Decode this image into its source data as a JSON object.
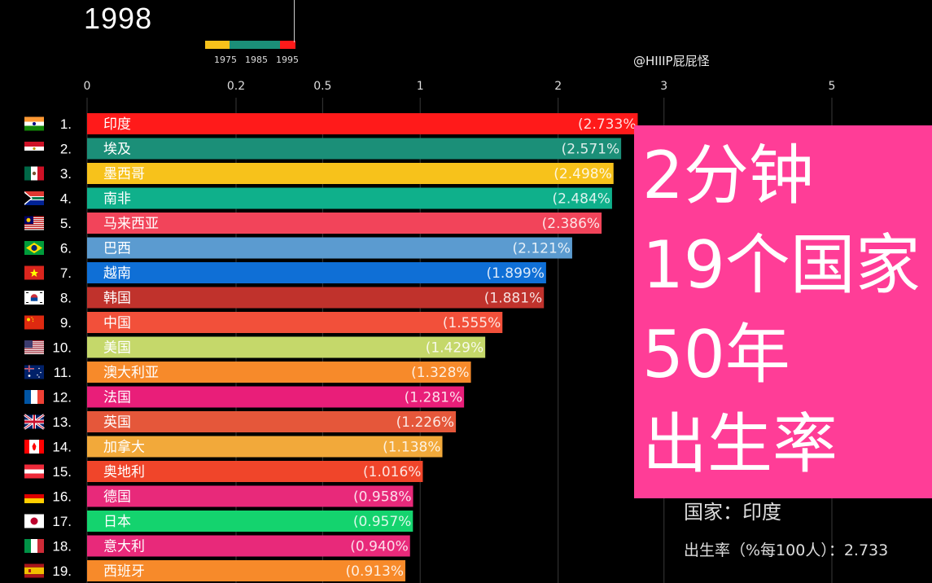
{
  "header": {
    "year": "1998",
    "credit": "@HIIIP屁屁怪",
    "timeline_labels": [
      "1975",
      "1985",
      "1995"
    ]
  },
  "overlay": {
    "lines": [
      "2分钟",
      "19个国家",
      "50年",
      "出生率"
    ]
  },
  "info": {
    "country_line": "国家：印度",
    "rate_line": "出生率（%每100人）：2.733"
  },
  "colors": {
    "timeline": [
      "#f7c21b",
      "#1b8f78",
      "#ff1a1a"
    ],
    "overlay": "#ff3d97"
  },
  "chart_data": {
    "type": "bar",
    "orientation": "horizontal",
    "scale": "sqrt",
    "xlim": [
      0,
      5
    ],
    "x_ticks": [
      0,
      0.2,
      0.5,
      1,
      2,
      3,
      5
    ],
    "x_tick_labels": [
      "0",
      "0.2",
      "0.5",
      "1",
      "2",
      "3",
      "5"
    ],
    "bars": [
      {
        "rank": "1.",
        "label": "印度",
        "value": 2.733,
        "value_label": "(2.733%",
        "color": "#ff1a1a",
        "flag": "india"
      },
      {
        "rank": "2.",
        "label": "埃及",
        "value": 2.571,
        "value_label": "(2.571%",
        "color": "#1b8f78",
        "flag": "egypt"
      },
      {
        "rank": "3.",
        "label": "墨西哥",
        "value": 2.498,
        "value_label": "(2.498%",
        "color": "#f7c21b",
        "flag": "mexico"
      },
      {
        "rank": "4.",
        "label": "南非",
        "value": 2.484,
        "value_label": "(2.484%",
        "color": "#0fb08b",
        "flag": "southafrica"
      },
      {
        "rank": "5.",
        "label": "马来西亚",
        "value": 2.386,
        "value_label": "(2.386%",
        "color": "#f2445a",
        "flag": "malaysia"
      },
      {
        "rank": "6.",
        "label": "巴西",
        "value": 2.121,
        "value_label": "(2.121%",
        "color": "#5b9bd0",
        "flag": "brazil"
      },
      {
        "rank": "7.",
        "label": "越南",
        "value": 1.899,
        "value_label": "(1.899%",
        "color": "#0f6fd6",
        "flag": "vietnam"
      },
      {
        "rank": "8.",
        "label": "韩国",
        "value": 1.881,
        "value_label": "(1.881%",
        "color": "#c0322c",
        "flag": "korea"
      },
      {
        "rank": "9.",
        "label": "中国",
        "value": 1.555,
        "value_label": "(1.555%",
        "color": "#f2503a",
        "flag": "china"
      },
      {
        "rank": "10.",
        "label": "美国",
        "value": 1.429,
        "value_label": "(1.429%",
        "color": "#c5d86a",
        "flag": "usa"
      },
      {
        "rank": "11.",
        "label": "澳大利亚",
        "value": 1.328,
        "value_label": "(1.328%",
        "color": "#f78a2a",
        "flag": "australia"
      },
      {
        "rank": "12.",
        "label": "法国",
        "value": 1.281,
        "value_label": "(1.281%",
        "color": "#e91e79",
        "flag": "france"
      },
      {
        "rank": "13.",
        "label": "英国",
        "value": 1.226,
        "value_label": "(1.226%",
        "color": "#e5573a",
        "flag": "uk"
      },
      {
        "rank": "14.",
        "label": "加拿大",
        "value": 1.138,
        "value_label": "(1.138%",
        "color": "#f2a93a",
        "flag": "canada"
      },
      {
        "rank": "15.",
        "label": "奥地利",
        "value": 1.016,
        "value_label": "(1.016%",
        "color": "#f0452a",
        "flag": "austria"
      },
      {
        "rank": "16.",
        "label": "德国",
        "value": 0.958,
        "value_label": "(0.958%",
        "color": "#e8297a",
        "flag": "germany"
      },
      {
        "rank": "17.",
        "label": "日本",
        "value": 0.957,
        "value_label": "(0.957%",
        "color": "#14d36e",
        "flag": "japan"
      },
      {
        "rank": "18.",
        "label": "意大利",
        "value": 0.94,
        "value_label": "(0.940%",
        "color": "#e8297a",
        "flag": "italy"
      },
      {
        "rank": "19.",
        "label": "西班牙",
        "value": 0.913,
        "value_label": "(0.913%",
        "color": "#f78a2a",
        "flag": "spain"
      }
    ]
  }
}
